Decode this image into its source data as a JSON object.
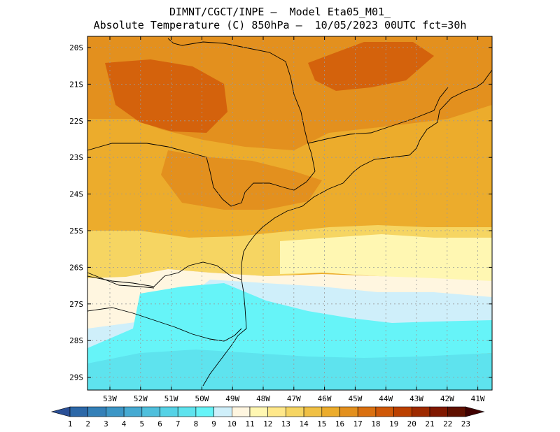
{
  "title": {
    "line1": "DIMNT/CGCT/INPE –  Model Eta05_M01_",
    "line2": "Absolute Temperature (C) 850hPa –  10/05/2023 00UTC fct=30h"
  },
  "axes": {
    "lat_labels": [
      "20S",
      "21S",
      "22S",
      "23S",
      "24S",
      "25S",
      "26S",
      "27S",
      "28S",
      "29S"
    ],
    "lon_labels": [
      "53W",
      "52W",
      "51W",
      "50W",
      "49W",
      "48W",
      "47W",
      "46W",
      "45W",
      "44W",
      "43W",
      "42W",
      "41W"
    ]
  },
  "colorbar": {
    "labels": [
      "1",
      "2",
      "3",
      "4",
      "5",
      "6",
      "7",
      "8",
      "9",
      "10",
      "11",
      "12",
      "13",
      "14",
      "15",
      "16",
      "17",
      "18",
      "19",
      "20",
      "21",
      "22",
      "23"
    ],
    "colors": [
      "#2a4f96",
      "#2c68a8",
      "#3480b8",
      "#3c96c6",
      "#46aad2",
      "#4fbfdc",
      "#55d2e6",
      "#5ee3ee",
      "#66f4f8",
      "#cfeffa",
      "#fff6e0",
      "#fff7b2",
      "#ffe88a",
      "#f6d562",
      "#f0c044",
      "#ecac2c",
      "#e3901e",
      "#da7010",
      "#cf5808",
      "#bb4000",
      "#9e2a00",
      "#801800",
      "#601000",
      "#400000"
    ]
  },
  "map_colors": {
    "c8": "#5ee3ee",
    "c9": "#66f4f8",
    "c10": "#cfeffa",
    "c11": "#fff6e0",
    "c12": "#fff7b2",
    "c13": "#ffe88a",
    "c14": "#f6d562",
    "c15": "#f0c044",
    "c16": "#ecac2c",
    "c17": "#e3901e",
    "c18": "#d4620c"
  }
}
